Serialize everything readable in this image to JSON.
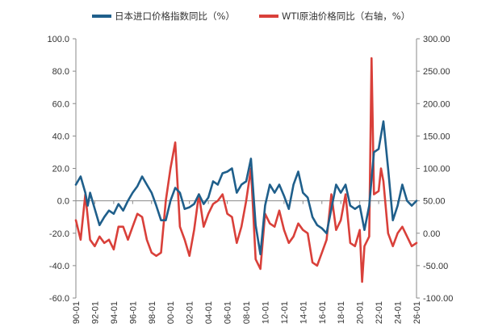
{
  "colors": {
    "series1": "#1f5f8b",
    "series2": "#d9403a",
    "axis": "#8a8a8a"
  },
  "chart_data": {
    "type": "line",
    "title": "",
    "xlabel": "",
    "ylabel": "",
    "ylabel_right": "",
    "x_tick_labels": [
      "90-01",
      "92-01",
      "94-01",
      "96-01",
      "98-01",
      "00-01",
      "02-01",
      "04-01",
      "06-01",
      "08-01",
      "10-01",
      "12-01",
      "14-01",
      "16-01",
      "18-01",
      "20-01",
      "22-01",
      "24-01",
      "26-01"
    ],
    "x_tick_years": [
      1990,
      1992,
      1994,
      1996,
      1998,
      2000,
      2002,
      2004,
      2006,
      2008,
      2010,
      2012,
      2014,
      2016,
      2018,
      2020,
      2022,
      2024,
      2026
    ],
    "xlim": [
      "1990-01",
      "2026-01"
    ],
    "y_left": {
      "lim": [
        -60,
        100
      ],
      "ticks": [
        100,
        80,
        60,
        40,
        20,
        0,
        -20,
        -40,
        -60
      ],
      "tick_labels": [
        "100.0",
        "80.0",
        "60.0",
        "40.0",
        "20.0",
        "0.0",
        "-20.0",
        "-40.0",
        "-60.0"
      ]
    },
    "y_right": {
      "lim": [
        -100,
        300
      ],
      "ticks": [
        300,
        250,
        200,
        150,
        100,
        50,
        0,
        -50,
        -100
      ],
      "tick_labels": [
        "300.00",
        "250.00",
        "200.00",
        "150.00",
        "100.00",
        "50.00",
        "0.00",
        "-50.00",
        "-100.00"
      ]
    },
    "legend_position": "top",
    "series": [
      {
        "name": "日本进口价格指数同比（%）",
        "axis": "left",
        "points": [
          [
            "1990-01",
            10
          ],
          [
            "1990-07",
            15
          ],
          [
            "1991-01",
            5
          ],
          [
            "1991-04",
            -3
          ],
          [
            "1991-07",
            5
          ],
          [
            "1992-01",
            -5
          ],
          [
            "1992-07",
            -15
          ],
          [
            "1993-01",
            -10
          ],
          [
            "1993-07",
            -6
          ],
          [
            "1994-01",
            -8
          ],
          [
            "1994-07",
            -2
          ],
          [
            "1995-01",
            -6
          ],
          [
            "1995-07",
            0
          ],
          [
            "1996-01",
            5
          ],
          [
            "1996-07",
            9
          ],
          [
            "1997-01",
            15
          ],
          [
            "1997-07",
            10
          ],
          [
            "1998-01",
            5
          ],
          [
            "1998-07",
            -3
          ],
          [
            "1999-01",
            -12
          ],
          [
            "1999-07",
            -12
          ],
          [
            "2000-01",
            0
          ],
          [
            "2000-07",
            8
          ],
          [
            "2001-01",
            5
          ],
          [
            "2001-07",
            -5
          ],
          [
            "2002-01",
            -4
          ],
          [
            "2002-07",
            -2
          ],
          [
            "2003-01",
            4
          ],
          [
            "2003-07",
            -2
          ],
          [
            "2004-01",
            2
          ],
          [
            "2004-07",
            12
          ],
          [
            "2005-01",
            10
          ],
          [
            "2005-07",
            17
          ],
          [
            "2006-01",
            18
          ],
          [
            "2006-07",
            20
          ],
          [
            "2007-01",
            5
          ],
          [
            "2007-07",
            10
          ],
          [
            "2008-01",
            12
          ],
          [
            "2008-07",
            26
          ],
          [
            "2009-01",
            -15
          ],
          [
            "2009-07",
            -33
          ],
          [
            "2010-01",
            -3
          ],
          [
            "2010-07",
            10
          ],
          [
            "2011-01",
            5
          ],
          [
            "2011-07",
            10
          ],
          [
            "2012-01",
            3
          ],
          [
            "2012-07",
            -5
          ],
          [
            "2013-01",
            10
          ],
          [
            "2013-07",
            18
          ],
          [
            "2014-01",
            5
          ],
          [
            "2014-07",
            2
          ],
          [
            "2015-01",
            -10
          ],
          [
            "2015-07",
            -15
          ],
          [
            "2016-01",
            -17
          ],
          [
            "2016-07",
            -20
          ],
          [
            "2017-01",
            -5
          ],
          [
            "2017-07",
            10
          ],
          [
            "2018-01",
            5
          ],
          [
            "2018-07",
            10
          ],
          [
            "2019-01",
            -3
          ],
          [
            "2019-07",
            -5
          ],
          [
            "2020-01",
            -3
          ],
          [
            "2020-07",
            -18
          ],
          [
            "2021-01",
            -3
          ],
          [
            "2021-07",
            30
          ],
          [
            "2022-01",
            32
          ],
          [
            "2022-07",
            49
          ],
          [
            "2023-01",
            20
          ],
          [
            "2023-07",
            -12
          ],
          [
            "2024-01",
            -3
          ],
          [
            "2024-07",
            10
          ],
          [
            "2025-01",
            0
          ],
          [
            "2025-07",
            -3
          ],
          [
            "2026-01",
            0
          ]
        ]
      },
      {
        "name": "WTI原油价格同比（右轴，%）",
        "axis": "right",
        "points": [
          [
            "1990-01",
            20
          ],
          [
            "1990-07",
            -10
          ],
          [
            "1991-01",
            60
          ],
          [
            "1991-07",
            -10
          ],
          [
            "1992-01",
            -20
          ],
          [
            "1992-07",
            -5
          ],
          [
            "1993-01",
            -15
          ],
          [
            "1993-07",
            -10
          ],
          [
            "1994-01",
            -25
          ],
          [
            "1994-07",
            10
          ],
          [
            "1995-01",
            10
          ],
          [
            "1995-07",
            -10
          ],
          [
            "1996-01",
            10
          ],
          [
            "1996-07",
            30
          ],
          [
            "1997-01",
            25
          ],
          [
            "1997-07",
            -10
          ],
          [
            "1998-01",
            -30
          ],
          [
            "1998-07",
            -35
          ],
          [
            "1999-01",
            -30
          ],
          [
            "1999-07",
            50
          ],
          [
            "2000-01",
            100
          ],
          [
            "2000-07",
            140
          ],
          [
            "2001-01",
            10
          ],
          [
            "2001-07",
            -10
          ],
          [
            "2002-01",
            -35
          ],
          [
            "2002-07",
            5
          ],
          [
            "2003-01",
            60
          ],
          [
            "2003-07",
            10
          ],
          [
            "2004-01",
            30
          ],
          [
            "2004-07",
            45
          ],
          [
            "2005-01",
            50
          ],
          [
            "2005-07",
            60
          ],
          [
            "2006-01",
            30
          ],
          [
            "2006-07",
            25
          ],
          [
            "2007-01",
            -15
          ],
          [
            "2007-07",
            10
          ],
          [
            "2008-01",
            50
          ],
          [
            "2008-07",
            100
          ],
          [
            "2009-01",
            -40
          ],
          [
            "2009-07",
            -55
          ],
          [
            "2010-01",
            30
          ],
          [
            "2010-07",
            15
          ],
          [
            "2011-01",
            10
          ],
          [
            "2011-07",
            35
          ],
          [
            "2012-01",
            5
          ],
          [
            "2012-07",
            -15
          ],
          [
            "2013-01",
            -5
          ],
          [
            "2013-07",
            15
          ],
          [
            "2014-01",
            5
          ],
          [
            "2014-07",
            0
          ],
          [
            "2015-01",
            -45
          ],
          [
            "2015-07",
            -50
          ],
          [
            "2016-01",
            -30
          ],
          [
            "2016-07",
            -10
          ],
          [
            "2017-01",
            60
          ],
          [
            "2017-07",
            5
          ],
          [
            "2018-01",
            20
          ],
          [
            "2018-07",
            60
          ],
          [
            "2019-01",
            -15
          ],
          [
            "2019-07",
            -20
          ],
          [
            "2020-01",
            5
          ],
          [
            "2020-04",
            -75
          ],
          [
            "2020-07",
            -20
          ],
          [
            "2021-01",
            -5
          ],
          [
            "2021-04",
            270
          ],
          [
            "2021-07",
            60
          ],
          [
            "2022-01",
            65
          ],
          [
            "2022-04",
            100
          ],
          [
            "2022-07",
            80
          ],
          [
            "2023-01",
            0
          ],
          [
            "2023-07",
            -20
          ],
          [
            "2024-01",
            0
          ],
          [
            "2024-07",
            10
          ],
          [
            "2025-01",
            -5
          ],
          [
            "2025-07",
            -20
          ],
          [
            "2026-01",
            -15
          ]
        ]
      }
    ]
  }
}
